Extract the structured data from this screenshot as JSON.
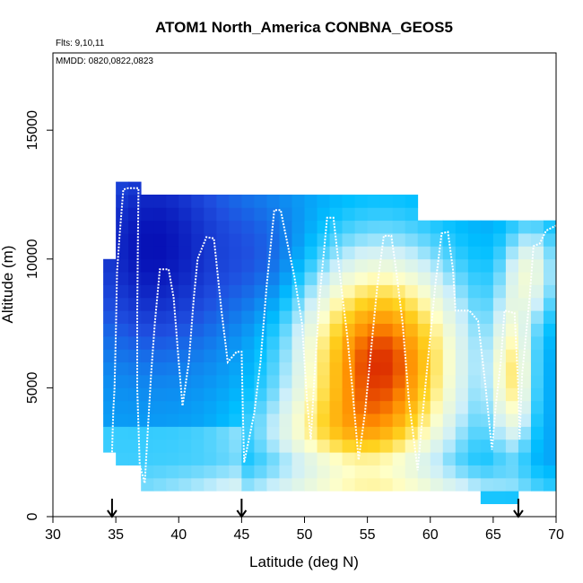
{
  "chart_data": {
    "type": "heatmap",
    "title": "ATOM1 North_America CONBNA_GEOS5",
    "subtitle_lines": [
      "Flts: 9,10,11",
      "MMDD: 0820,0822,0823"
    ],
    "xlabel": "Latitude (deg N)",
    "ylabel": "Altitude (m)",
    "xlim": [
      30,
      70
    ],
    "ylim": [
      0,
      18000
    ],
    "x_ticks": [
      30,
      35,
      40,
      45,
      50,
      55,
      60,
      65,
      70
    ],
    "y_ticks": [
      0,
      5000,
      10000,
      15000
    ],
    "arrow_latitudes": [
      34.7,
      45.0,
      67.0
    ],
    "color_scale": [
      "#0000aa",
      "#1f4fe0",
      "#00bfff",
      "#cdeffa",
      "#ffffc8",
      "#ffd21e",
      "#ff8c00",
      "#cc0000"
    ],
    "flight_track_color": "#ffffff",
    "flight_track_points": [
      [
        34.7,
        2500
      ],
      [
        34.8,
        4100
      ],
      [
        34.9,
        5000
      ],
      [
        35.0,
        7000
      ],
      [
        35.1,
        9500
      ],
      [
        35.3,
        10900
      ],
      [
        35.6,
        12700
      ],
      [
        36.0,
        12750
      ],
      [
        36.8,
        12750
      ],
      [
        36.7,
        8000
      ],
      [
        36.7,
        5000
      ],
      [
        36.9,
        2000
      ],
      [
        37.3,
        1300
      ],
      [
        37.5,
        3000
      ],
      [
        37.8,
        5500
      ],
      [
        38.1,
        7500
      ],
      [
        38.5,
        9600
      ],
      [
        39.2,
        9600
      ],
      [
        39.6,
        8500
      ],
      [
        40.0,
        6000
      ],
      [
        40.3,
        4300
      ],
      [
        40.8,
        6000
      ],
      [
        41.2,
        8500
      ],
      [
        41.5,
        10000
      ],
      [
        42.2,
        10850
      ],
      [
        42.8,
        10800
      ],
      [
        43.4,
        8000
      ],
      [
        43.9,
        6000
      ],
      [
        44.6,
        6400
      ],
      [
        45.0,
        6400
      ],
      [
        45.1,
        4000
      ],
      [
        45.2,
        2100
      ],
      [
        46.0,
        4000
      ],
      [
        46.5,
        6000
      ],
      [
        47.0,
        9000
      ],
      [
        47.6,
        11900
      ],
      [
        48.1,
        11900
      ],
      [
        48.6,
        10700
      ],
      [
        49.2,
        9300
      ],
      [
        49.8,
        7500
      ],
      [
        50.2,
        4500
      ],
      [
        50.5,
        3000
      ],
      [
        50.8,
        5500
      ],
      [
        51.2,
        8500
      ],
      [
        51.8,
        11600
      ],
      [
        52.3,
        11600
      ],
      [
        52.9,
        9000
      ],
      [
        53.4,
        7000
      ],
      [
        53.8,
        5000
      ],
      [
        54.3,
        2200
      ],
      [
        54.8,
        4000
      ],
      [
        55.3,
        6500
      ],
      [
        55.8,
        9000
      ],
      [
        56.3,
        10900
      ],
      [
        56.9,
        10900
      ],
      [
        57.3,
        9500
      ],
      [
        57.8,
        7500
      ],
      [
        58.3,
        4500
      ],
      [
        59.0,
        1800
      ],
      [
        59.4,
        4000
      ],
      [
        59.9,
        6500
      ],
      [
        60.4,
        9000
      ],
      [
        60.9,
        11000
      ],
      [
        61.4,
        11050
      ],
      [
        61.8,
        9600
      ],
      [
        62.0,
        8000
      ],
      [
        63.1,
        8000
      ],
      [
        63.8,
        7600
      ],
      [
        64.4,
        5000
      ],
      [
        64.9,
        2600
      ],
      [
        65.2,
        4300
      ],
      [
        65.6,
        6000
      ],
      [
        65.9,
        8000
      ],
      [
        66.7,
        7900
      ],
      [
        67.0,
        5000
      ],
      [
        67.1,
        3000
      ],
      [
        67.3,
        5500
      ],
      [
        67.6,
        7000
      ],
      [
        67.9,
        8500
      ],
      [
        68.2,
        10500
      ],
      [
        68.7,
        10600
      ],
      [
        69.2,
        11100
      ],
      [
        70.0,
        11300
      ]
    ]
  }
}
